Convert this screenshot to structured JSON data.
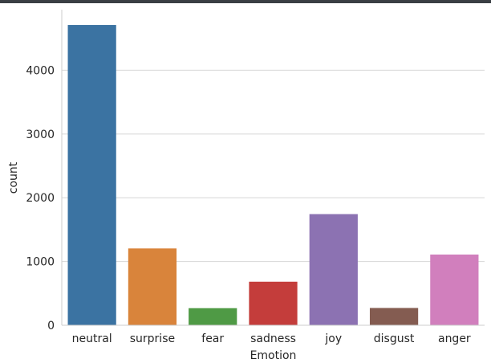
{
  "chart_data": {
    "type": "bar",
    "title": "",
    "xlabel": "Emotion",
    "ylabel": "count",
    "categories": [
      "neutral",
      "surprise",
      "fear",
      "sadness",
      "joy",
      "disgust",
      "anger"
    ],
    "values": [
      4710,
      1205,
      268,
      683,
      1743,
      271,
      1109
    ],
    "colors": [
      "#3b73a2",
      "#d9843b",
      "#4f9a45",
      "#c43d3b",
      "#8c72b2",
      "#845c51",
      "#d17fbd"
    ],
    "ylim": [
      0,
      4950
    ],
    "yticks": [
      0,
      1000,
      2000,
      3000,
      4000
    ],
    "grid": "horizontal",
    "grid_color": "#d6d6d6",
    "spine_color": "#cccccc"
  }
}
